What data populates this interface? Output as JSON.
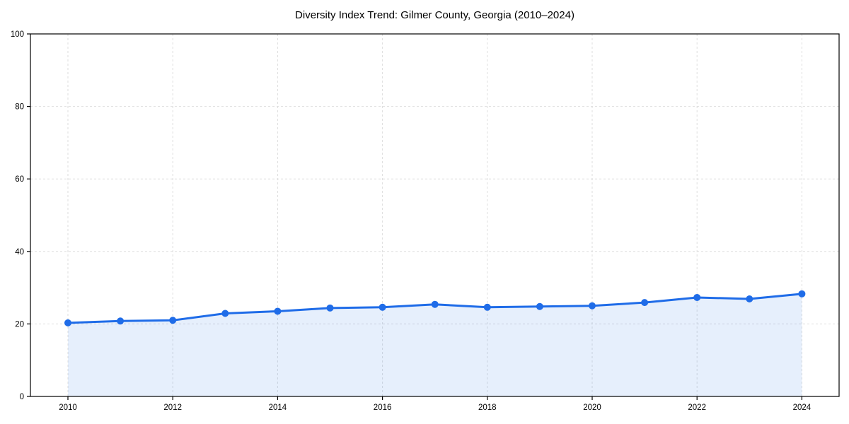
{
  "chart_data": {
    "type": "area",
    "title": "Diversity Index Trend: Gilmer County, Georgia (2010–2024)",
    "xlabel": "",
    "ylabel": "",
    "x": [
      2010,
      2011,
      2012,
      2013,
      2014,
      2015,
      2016,
      2017,
      2018,
      2019,
      2020,
      2021,
      2022,
      2023,
      2024
    ],
    "values": [
      20.3,
      20.8,
      21.0,
      22.9,
      23.5,
      24.4,
      24.6,
      25.4,
      24.6,
      24.8,
      25.0,
      25.9,
      27.3,
      26.9,
      28.3
    ],
    "series_name": "Diversity Index",
    "ylim": [
      0,
      100
    ],
    "xticks": [
      2010,
      2012,
      2014,
      2016,
      2018,
      2020,
      2022,
      2024
    ],
    "yticks": [
      0,
      20,
      40,
      60,
      80,
      100
    ],
    "grid": true,
    "grid_style": "dashed",
    "legend": "none",
    "colors": {
      "line": "#1f6ce8",
      "marker": "#1f6ce8",
      "fill": "#1f6ce8",
      "fill_opacity": 0.11,
      "grid": "#dedede",
      "axis": "#000000",
      "text": "#000000",
      "background": "#ffffff"
    }
  }
}
